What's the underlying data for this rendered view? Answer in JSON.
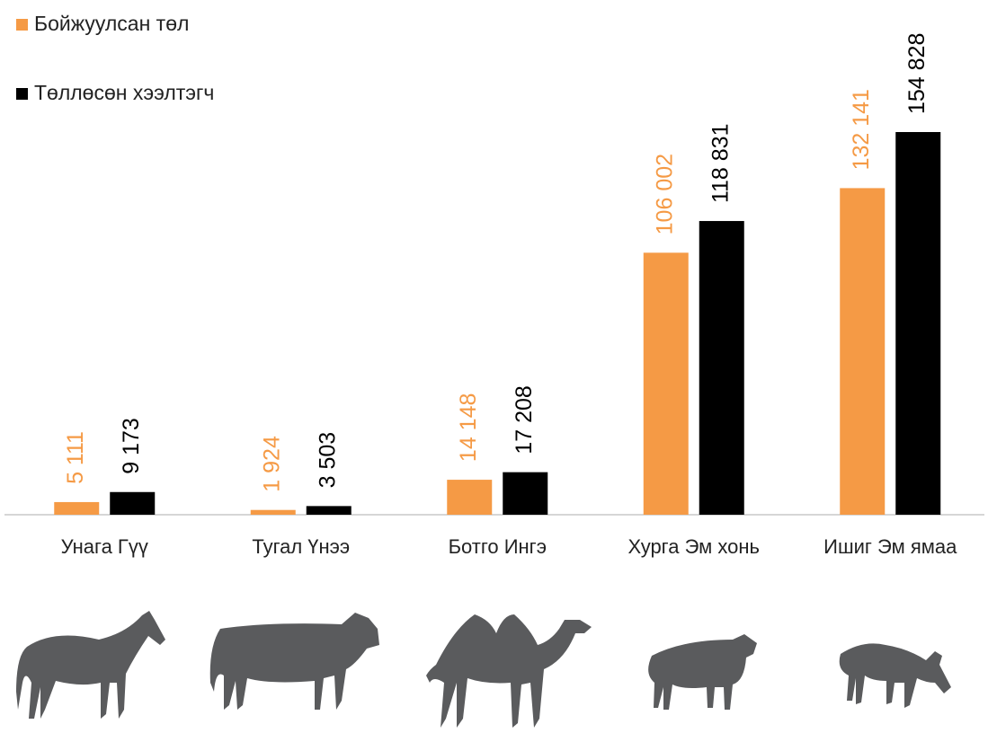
{
  "chart_data": {
    "type": "bar",
    "categories": [
      "Унага Гүү",
      "Тугал Үнээ",
      "Ботго Ингэ",
      "Хурга Эм хонь",
      "Ишиг Эм ямаа"
    ],
    "series": [
      {
        "name": "Бойжуулсан төл",
        "color": "#f59a45",
        "values": [
          5111,
          1924,
          14148,
          106002,
          132141
        ],
        "value_labels": [
          "5 111",
          "1 924",
          "14 148",
          "106 002",
          "132 141"
        ]
      },
      {
        "name": "Төллөсөн хээлтэгч",
        "color": "#000000",
        "values": [
          9173,
          3503,
          17208,
          118831,
          154828
        ],
        "value_labels": [
          "9 173",
          "3 503",
          "17 208",
          "118 831",
          "154 828"
        ]
      }
    ]
  }
}
